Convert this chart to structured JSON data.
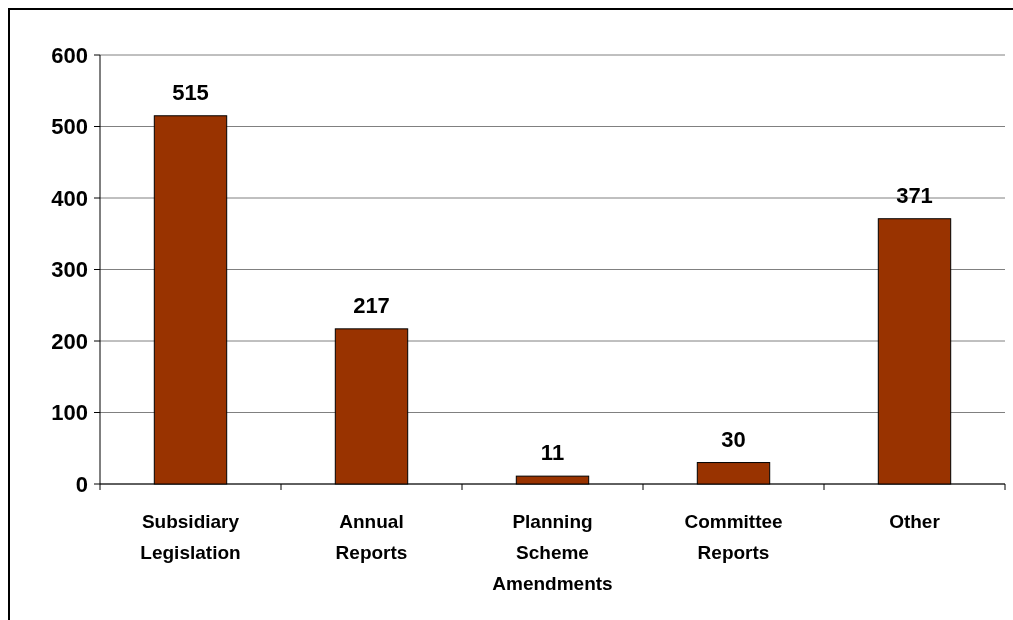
{
  "chart_data": {
    "type": "bar",
    "categories": [
      "Subsidiary Legislation",
      "Annual Reports",
      "Planning Scheme Amendments",
      "Committee Reports",
      "Other"
    ],
    "values": [
      515,
      217,
      11,
      30,
      371
    ],
    "color": "#993300",
    "ylim": [
      0,
      600
    ],
    "yticks": [
      0,
      100,
      200,
      300,
      400,
      500,
      600
    ],
    "grid": "y",
    "data_labels": true
  }
}
